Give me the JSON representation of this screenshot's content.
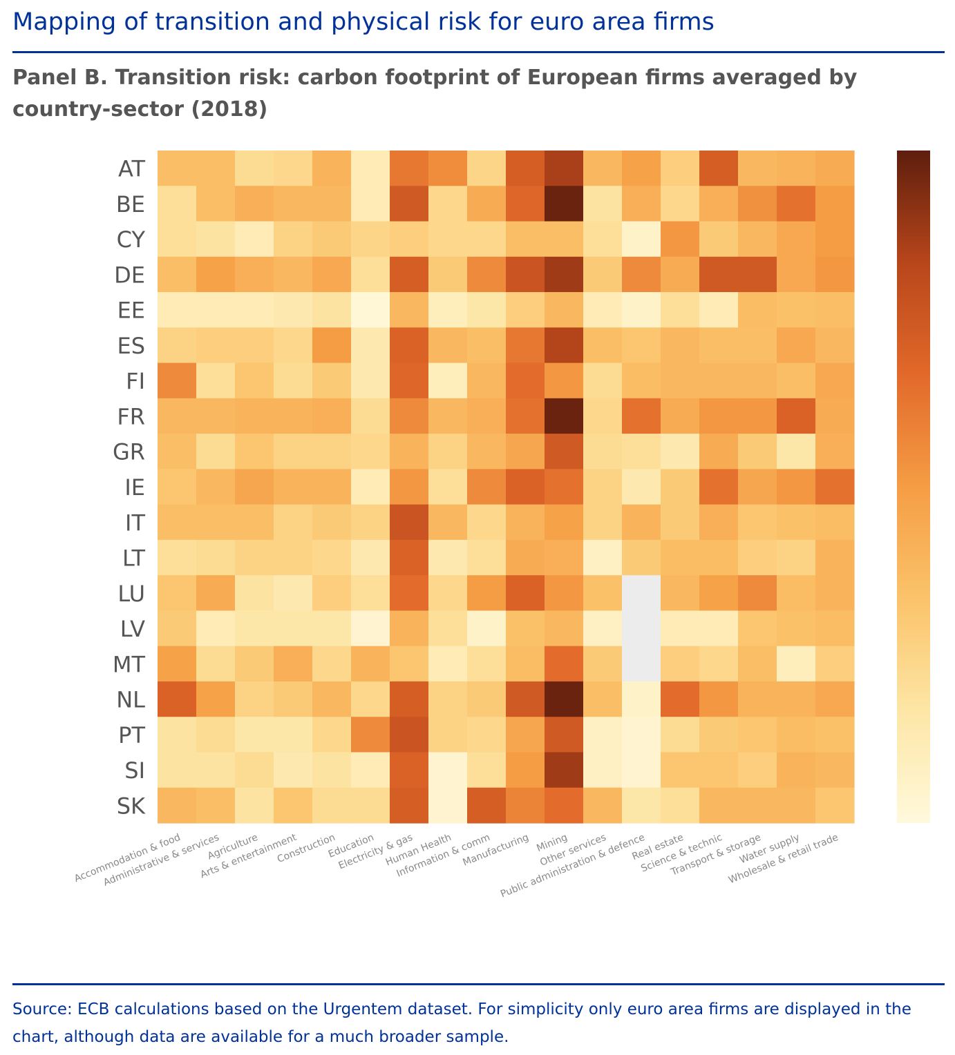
{
  "page": {
    "title": "Mapping of transition and physical risk for euro area firms",
    "subtitle": "Panel B. Transition risk: carbon footprint of European firms averaged by country-sector (2018)",
    "source": "Source: ECB calculations based on the Urgentem dataset. For simplicity only euro area firms are displayed in the chart, although data are available for a much broader sample."
  },
  "colors": {
    "accent": "#003299",
    "scale": [
      "#fff9dc",
      "#fde6a6",
      "#fbc36a",
      "#f59d45",
      "#e2692a",
      "#b8461b",
      "#5e1e0d"
    ],
    "missing": "#ececec"
  },
  "chart_data": {
    "type": "heatmap",
    "title": "",
    "xlabel": "",
    "ylabel": "",
    "colorbar": {
      "position": "right",
      "tick_labels": false
    },
    "y_categories": [
      "AT",
      "BE",
      "CY",
      "DE",
      "EE",
      "ES",
      "FI",
      "FR",
      "GR",
      "IE",
      "IT",
      "LT",
      "LU",
      "LV",
      "MT",
      "NL",
      "PT",
      "SI",
      "SK"
    ],
    "x_categories": [
      "Accommodation & food",
      "Administrative & services",
      "Agriculture",
      "Arts & entertainment",
      "Construction",
      "Education",
      "Electricity & gas",
      "Human Health",
      "Information & comm",
      "Manufacturing",
      "Mining",
      "Other services",
      "Public administration & defence",
      "Real estate",
      "Science & technic",
      "Transport & storage",
      "Water supply",
      "Wholesale & retail trade"
    ],
    "value_range": [
      0,
      1
    ],
    "values": [
      [
        0.35,
        0.35,
        0.22,
        0.24,
        0.4,
        0.12,
        0.62,
        0.55,
        0.25,
        0.72,
        0.86,
        0.38,
        0.48,
        0.28,
        0.72,
        0.38,
        0.4,
        0.44
      ],
      [
        0.2,
        0.35,
        0.42,
        0.38,
        0.38,
        0.12,
        0.74,
        0.24,
        0.44,
        0.68,
        0.98,
        0.18,
        0.42,
        0.24,
        0.42,
        0.54,
        0.64,
        0.5
      ],
      [
        0.2,
        0.18,
        0.12,
        0.26,
        0.3,
        0.25,
        0.28,
        0.24,
        0.24,
        0.35,
        0.35,
        0.2,
        0.06,
        0.52,
        0.3,
        0.38,
        0.45,
        0.5
      ],
      [
        0.35,
        0.48,
        0.42,
        0.38,
        0.45,
        0.2,
        0.72,
        0.3,
        0.56,
        0.76,
        0.88,
        0.3,
        0.56,
        0.44,
        0.74,
        0.74,
        0.45,
        0.52
      ],
      [
        0.12,
        0.12,
        0.12,
        0.14,
        0.18,
        0.02,
        0.38,
        0.1,
        0.16,
        0.28,
        0.38,
        0.12,
        0.06,
        0.2,
        0.12,
        0.36,
        0.34,
        0.35
      ],
      [
        0.26,
        0.28,
        0.28,
        0.24,
        0.5,
        0.14,
        0.7,
        0.38,
        0.35,
        0.62,
        0.84,
        0.35,
        0.32,
        0.38,
        0.35,
        0.35,
        0.45,
        0.38
      ],
      [
        0.56,
        0.2,
        0.32,
        0.22,
        0.3,
        0.14,
        0.68,
        0.1,
        0.38,
        0.66,
        0.52,
        0.22,
        0.36,
        0.38,
        0.38,
        0.38,
        0.35,
        0.45
      ],
      [
        0.38,
        0.38,
        0.4,
        0.4,
        0.42,
        0.22,
        0.56,
        0.38,
        0.42,
        0.64,
        0.98,
        0.24,
        0.64,
        0.44,
        0.52,
        0.52,
        0.7,
        0.44
      ],
      [
        0.35,
        0.22,
        0.32,
        0.26,
        0.26,
        0.24,
        0.4,
        0.26,
        0.38,
        0.46,
        0.74,
        0.22,
        0.2,
        0.14,
        0.44,
        0.3,
        0.16,
        0.42
      ],
      [
        0.32,
        0.38,
        0.46,
        0.4,
        0.4,
        0.12,
        0.52,
        0.2,
        0.56,
        0.7,
        0.64,
        0.26,
        0.14,
        0.3,
        0.64,
        0.46,
        0.52,
        0.64
      ],
      [
        0.35,
        0.35,
        0.35,
        0.26,
        0.3,
        0.26,
        0.76,
        0.38,
        0.24,
        0.4,
        0.48,
        0.26,
        0.4,
        0.3,
        0.42,
        0.32,
        0.34,
        0.36
      ],
      [
        0.2,
        0.22,
        0.26,
        0.26,
        0.24,
        0.14,
        0.7,
        0.14,
        0.2,
        0.44,
        0.42,
        0.08,
        0.3,
        0.36,
        0.36,
        0.28,
        0.26,
        0.4
      ],
      [
        0.32,
        0.44,
        0.18,
        0.14,
        0.28,
        0.2,
        0.66,
        0.24,
        0.5,
        0.7,
        0.52,
        0.34,
        null,
        0.38,
        0.48,
        0.56,
        0.36,
        0.4
      ],
      [
        0.3,
        0.12,
        0.16,
        0.16,
        0.16,
        0.04,
        0.4,
        0.2,
        0.06,
        0.34,
        0.38,
        0.08,
        null,
        0.12,
        0.12,
        0.32,
        0.34,
        0.36
      ],
      [
        0.48,
        0.22,
        0.3,
        0.42,
        0.24,
        0.4,
        0.32,
        0.12,
        0.2,
        0.36,
        0.66,
        0.3,
        null,
        0.28,
        0.24,
        0.35,
        0.1,
        0.28
      ],
      [
        0.7,
        0.48,
        0.26,
        0.3,
        0.38,
        0.24,
        0.72,
        0.26,
        0.3,
        0.74,
        0.98,
        0.35,
        0.06,
        0.66,
        0.52,
        0.4,
        0.4,
        0.45
      ],
      [
        0.18,
        0.22,
        0.16,
        0.16,
        0.24,
        0.56,
        0.76,
        0.26,
        0.24,
        0.46,
        0.74,
        0.08,
        0.04,
        0.22,
        0.3,
        0.32,
        0.36,
        0.34
      ],
      [
        0.18,
        0.18,
        0.22,
        0.14,
        0.18,
        0.12,
        0.7,
        0.04,
        0.2,
        0.5,
        0.88,
        0.08,
        0.04,
        0.32,
        0.32,
        0.28,
        0.4,
        0.38
      ],
      [
        0.38,
        0.35,
        0.18,
        0.32,
        0.22,
        0.22,
        0.72,
        0.04,
        0.72,
        0.58,
        0.66,
        0.38,
        0.16,
        0.2,
        0.38,
        0.38,
        0.38,
        0.32
      ]
    ]
  }
}
